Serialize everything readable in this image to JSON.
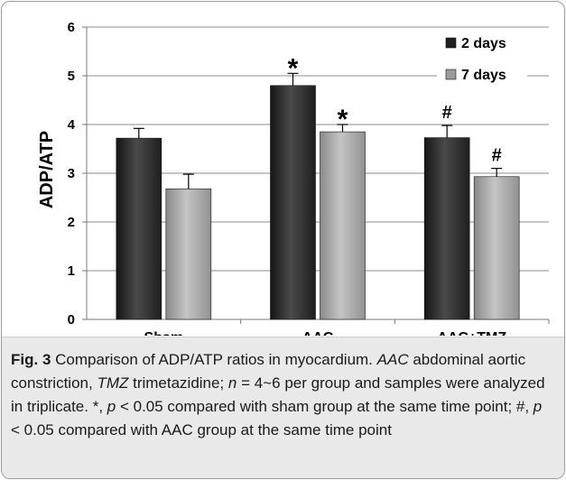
{
  "chart_data": {
    "type": "bar",
    "title": "",
    "xlabel": "",
    "ylabel": "ADP/ATP",
    "ylim": [
      0,
      6
    ],
    "yticks": [
      "0",
      "1",
      "2",
      "3",
      "4",
      "5",
      "6"
    ],
    "grid": true,
    "legend_position": "top-right",
    "categories": [
      "Sham",
      "AAC",
      "AAC+TMZ"
    ],
    "series": [
      {
        "name": "2 days",
        "color": "#2b2b2b",
        "values": [
          3.72,
          4.8,
          3.73
        ],
        "errors": [
          0.2,
          0.25,
          0.25
        ],
        "markers": [
          "",
          "*",
          "#"
        ]
      },
      {
        "name": "7 days",
        "color": "#a6a6a6",
        "values": [
          2.68,
          3.85,
          2.93
        ],
        "errors": [
          0.3,
          0.15,
          0.17
        ],
        "markers": [
          "",
          "*",
          "#"
        ]
      }
    ]
  },
  "caption": {
    "label": "Fig. 3",
    "segments": [
      {
        "text": " Comparison of ADP/ATP ratios in myocardium. ",
        "italic": false
      },
      {
        "text": "AAC",
        "italic": true
      },
      {
        "text": " abdominal aortic constriction, ",
        "italic": false
      },
      {
        "text": "TMZ",
        "italic": true
      },
      {
        "text": " trimetazidine; ",
        "italic": false
      },
      {
        "text": "n",
        "italic": true
      },
      {
        "text": " = 4~6 per group and samples were analyzed in triplicate. *, ",
        "italic": false
      },
      {
        "text": "p",
        "italic": true
      },
      {
        "text": " < 0.05 compared with sham group at the same time point; #, ",
        "italic": false
      },
      {
        "text": "p",
        "italic": true
      },
      {
        "text": " < 0.05 compared with AAC group at the same time point",
        "italic": false
      }
    ]
  }
}
